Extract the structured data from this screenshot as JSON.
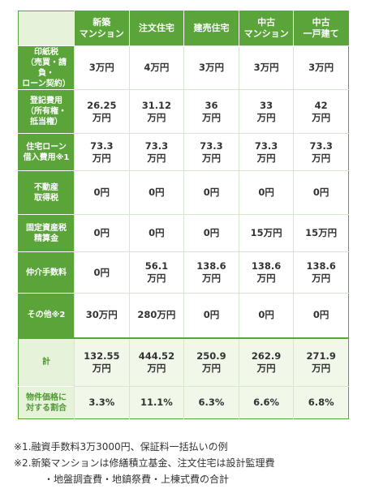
{
  "table": {
    "columns": [
      "新築\nマンション",
      "注文住宅",
      "建売住宅",
      "中古\nマンション",
      "中古\n一戸建て"
    ],
    "rows": [
      {
        "label": "印紙税\n（売買・請負・\nローン契約）",
        "values": [
          "3万円",
          "4万円",
          "3万円",
          "3万円",
          "3万円"
        ]
      },
      {
        "label": "登記費用\n（所有権・\n抵当権）",
        "values": [
          "26.25\n万円",
          "31.12\n万円",
          "36\n万円",
          "33\n万円",
          "42\n万円"
        ]
      },
      {
        "label": "住宅ローン\n借入費用※1",
        "values": [
          "73.3\n万円",
          "73.3\n万円",
          "73.3\n万円",
          "73.3\n万円",
          "73.3\n万円"
        ]
      },
      {
        "label": "不動産\n取得税",
        "values": [
          "0円",
          "0円",
          "0円",
          "0円",
          "0円"
        ]
      },
      {
        "label": "固定資産税\n精算金",
        "values": [
          "0円",
          "0円",
          "0円",
          "15万円",
          "15万円"
        ]
      },
      {
        "label": "仲介手数料",
        "values": [
          "0円",
          "56.1\n万円",
          "138.6\n万円",
          "138.6\n万円",
          "138.6\n万円"
        ]
      },
      {
        "label": "その他※2",
        "values": [
          "30万円",
          "280万円",
          "0円",
          "0円",
          "0円"
        ]
      },
      {
        "label": "計",
        "values": [
          "132.55\n万円",
          "444.52\n万円",
          "250.9\n万円",
          "262.9\n万円",
          "271.9\n万円"
        ]
      },
      {
        "label": "物件価格に\n対する割合",
        "values": [
          "3.3%",
          "11.1%",
          "6.3%",
          "6.6%",
          "6.8%"
        ]
      }
    ]
  },
  "notes": {
    "note1": "※1.融資手数料3万3000円、保証料一括払いの例",
    "note2a": "※2.新築マンションは修繕積立基金、注文住宅は設計監理費",
    "note2b": "・地盤調査費・地鎮祭費・上棟式費の合計"
  }
}
